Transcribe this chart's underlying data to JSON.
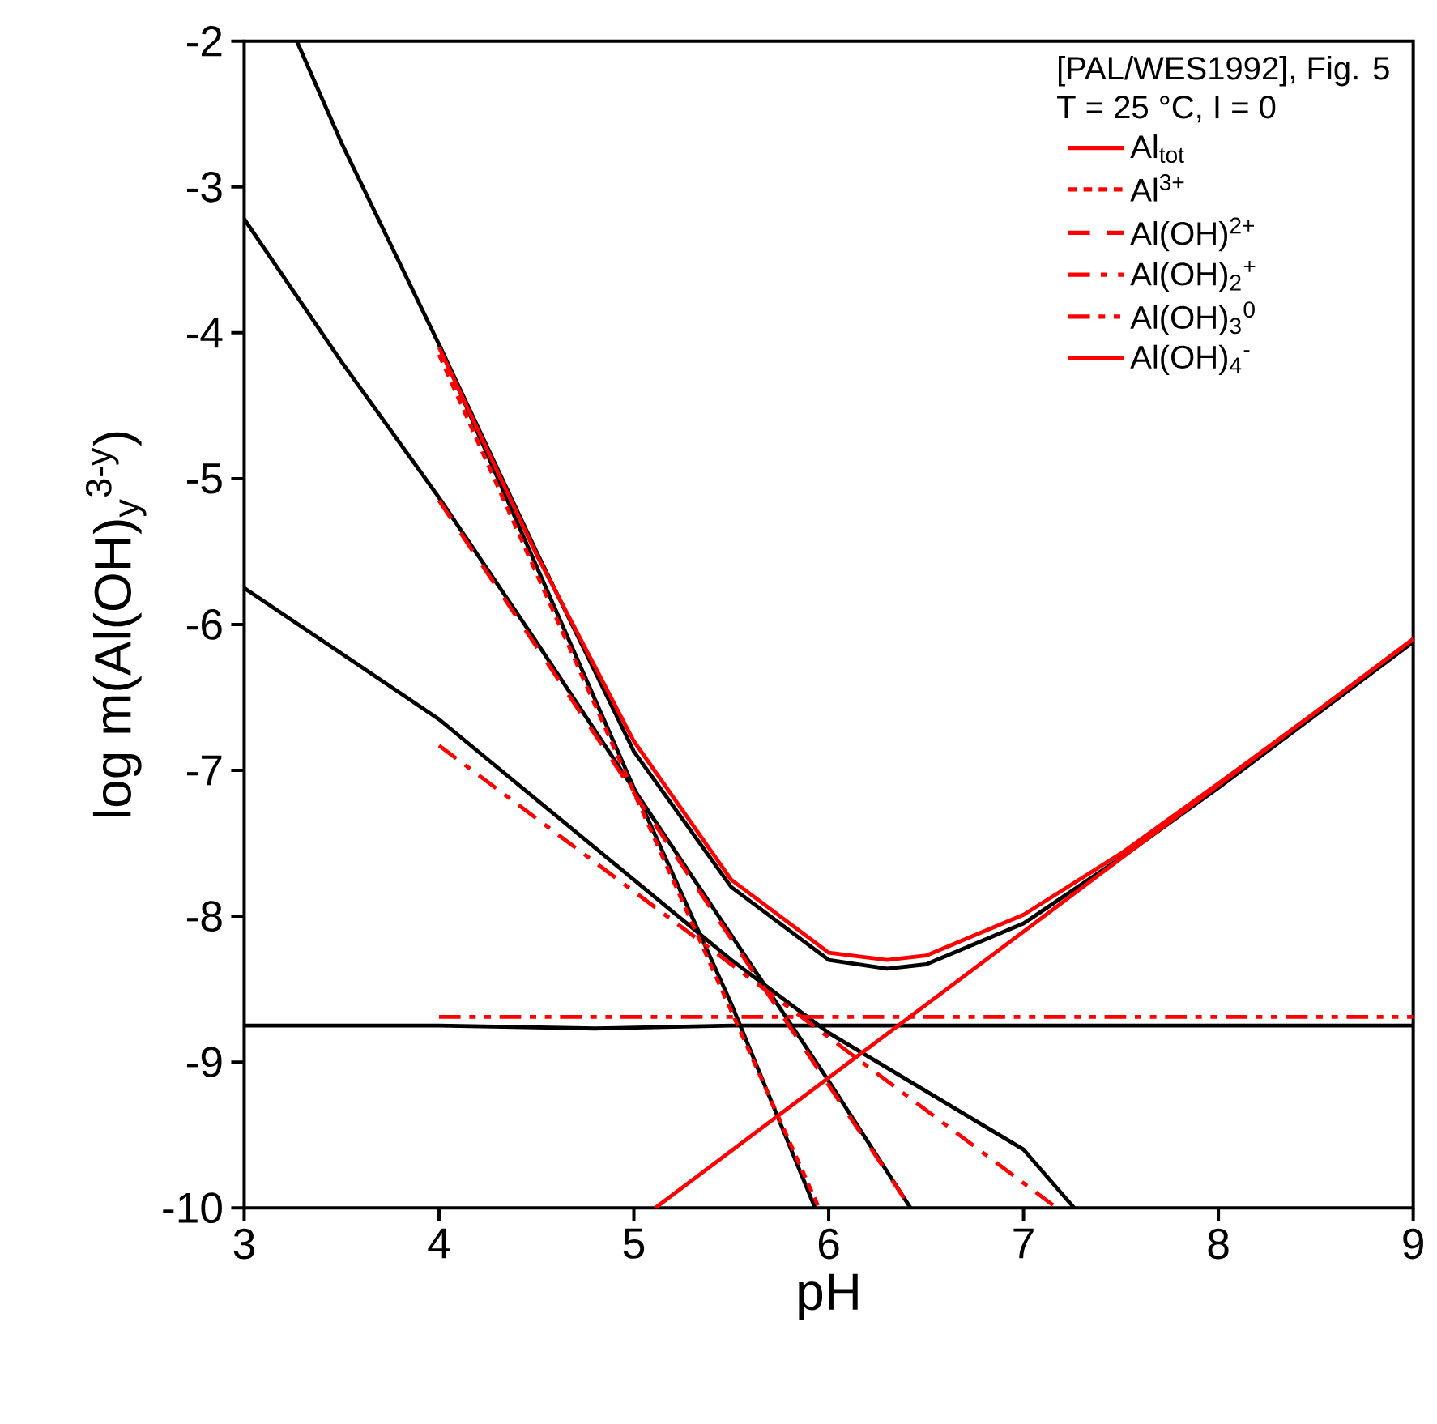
{
  "chart_data": {
    "type": "line",
    "xlabel": "pH",
    "ylabel": "log m(Al(OH)$_{y}$$^{3-y}$)",
    "legend_title": "[PAL/WES1992], Fig. 5",
    "annotations": [
      "T = 25 °C, I = 0"
    ],
    "xlim": [
      3,
      9
    ],
    "ylim": [
      -10,
      -2
    ],
    "xticks": [
      3,
      4,
      5,
      6,
      7,
      8,
      9
    ],
    "yticks": [
      -10,
      -9,
      -8,
      -7,
      -6,
      -5,
      -4,
      -3,
      -2
    ],
    "grid": false,
    "legend": "top right",
    "series": [
      {
        "color": "#000000",
        "line_style": "solid",
        "x": [
          3.27,
          3.5,
          4,
          4.5,
          5,
          5.5,
          5.93
        ],
        "values": [
          -2,
          -2.7,
          -4.08,
          -5.6,
          -7.12,
          -8.6,
          -10
        ]
      },
      {
        "color": "#000000",
        "line_style": "solid",
        "x": [
          4,
          4.5,
          5,
          5.5,
          6,
          6.3,
          6.5,
          7,
          7.5,
          8,
          8.5,
          9
        ],
        "values": [
          -4.08,
          -5.5,
          -6.87,
          -7.8,
          -8.3,
          -8.36,
          -8.33,
          -8.05,
          -7.6,
          -7.12,
          -6.62,
          -6.12
        ]
      },
      {
        "color": "#000000",
        "line_style": "solid",
        "x": [
          3,
          3.5,
          4,
          4.5,
          5,
          5.5,
          6,
          6.42
        ],
        "values": [
          -3.22,
          -4.2,
          -5.13,
          -6.12,
          -7.13,
          -8.13,
          -9.13,
          -10
        ]
      },
      {
        "color": "#000000",
        "line_style": "solid",
        "x": [
          3,
          3.5,
          4,
          4.5,
          5,
          5.5,
          6,
          6.5,
          7,
          7.26
        ],
        "values": [
          -5.75,
          -6.2,
          -6.65,
          -7.2,
          -7.75,
          -8.3,
          -8.8,
          -9.2,
          -9.6,
          -10
        ]
      },
      {
        "color": "#000000",
        "line_style": "solid",
        "x": [
          3,
          4,
          4.8,
          5.5,
          9
        ],
        "values": [
          -8.75,
          -8.75,
          -8.77,
          -8.75,
          -8.75
        ]
      },
      {
        "name": "Al$_{tot}$",
        "color": "#ff0000",
        "line_style": "solid",
        "x": [
          4,
          4.5,
          5,
          5.5,
          6,
          6.3,
          6.5,
          7,
          7.5,
          8,
          8.5,
          9
        ],
        "values": [
          -4.1,
          -5.52,
          -6.8,
          -7.75,
          -8.25,
          -8.3,
          -8.27,
          -7.99,
          -7.57,
          -7.09,
          -6.6,
          -6.1
        ]
      },
      {
        "name": "Al$^{3+}$",
        "color": "#ff0000",
        "line_style": "dotted",
        "x": [
          4,
          5.95
        ],
        "values": [
          -4.15,
          -10
        ]
      },
      {
        "name": "Al(OH)$^{2+}$",
        "color": "#ff0000",
        "line_style": "dashed",
        "x": [
          4,
          6.42
        ],
        "values": [
          -5.15,
          -10
        ]
      },
      {
        "name": "Al(OH)$_{2}$$^{+}$",
        "color": "#ff0000",
        "line_style": "dashdot",
        "x": [
          4,
          7.17
        ],
        "values": [
          -6.83,
          -10
        ]
      },
      {
        "name": "Al(OH)$_{3}$$^{0}$",
        "color": "#ff0000",
        "line_style": "dashdotdot",
        "x": [
          4,
          9
        ],
        "values": [
          -8.69,
          -8.69
        ]
      },
      {
        "name": "Al(OH)$_{4}$$^{-}$",
        "color": "#ff0000",
        "line_style": "solid",
        "x": [
          5.11,
          9
        ],
        "values": [
          -10,
          -6.1
        ]
      }
    ]
  }
}
